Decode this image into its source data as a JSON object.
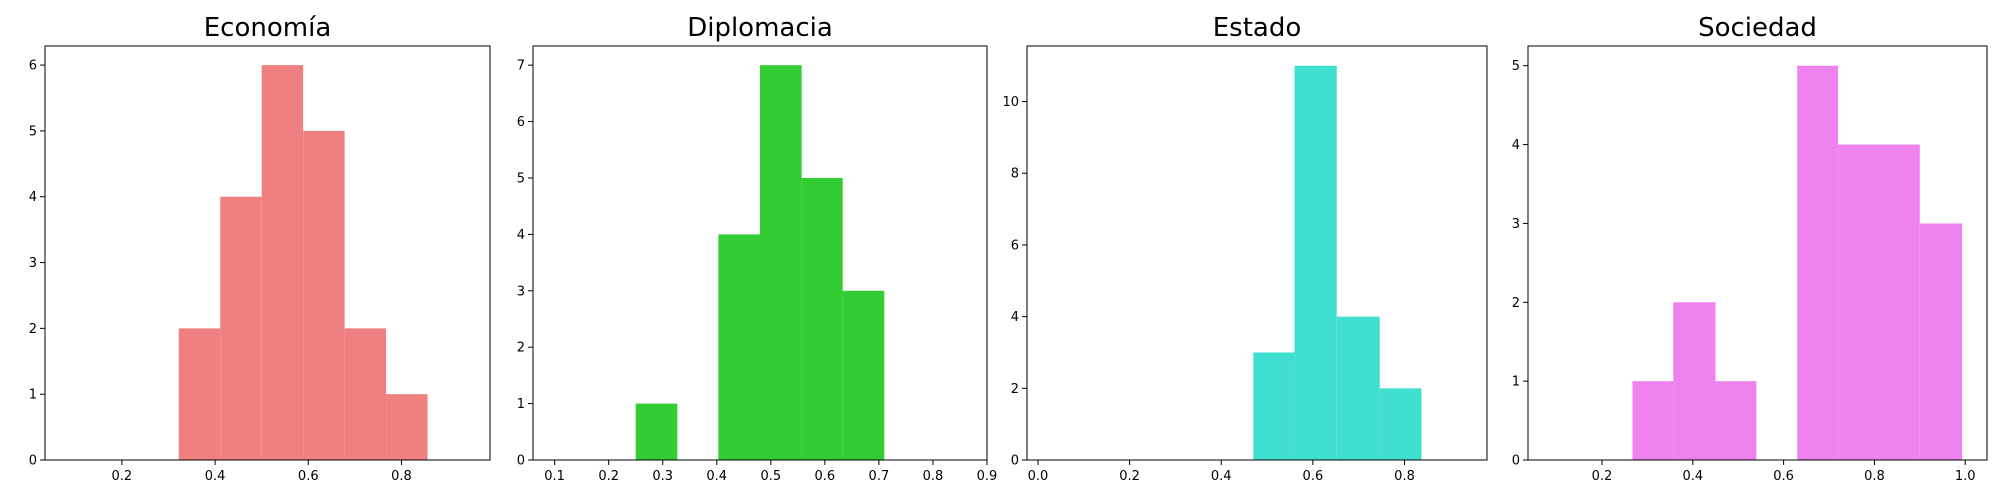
{
  "chart_data": [
    {
      "type": "histogram",
      "title": "Economía",
      "color": "#f08080",
      "bins": [
        0.322,
        0.411,
        0.5,
        0.589,
        0.678,
        0.767,
        0.856
      ],
      "values": [
        2,
        4,
        6,
        5,
        2,
        1
      ],
      "xlim": [
        0.035,
        0.99
      ],
      "ylim": [
        0,
        6.29
      ],
      "xticks": [
        0.2,
        0.4,
        0.6,
        0.8
      ],
      "yticks": [
        0,
        1,
        2,
        3,
        4,
        5,
        6
      ]
    },
    {
      "type": "histogram",
      "title": "Diplomacia",
      "color": "#32cd32",
      "bins": [
        0.25,
        0.327,
        0.403,
        0.48,
        0.557,
        0.633,
        0.71
      ],
      "values": [
        1,
        0,
        4,
        7,
        5,
        3
      ],
      "xlim": [
        0.06,
        0.9
      ],
      "ylim": [
        0,
        7.34
      ],
      "xticks": [
        0.1,
        0.2,
        0.3,
        0.4,
        0.5,
        0.6,
        0.7,
        0.8,
        0.9
      ],
      "yticks": [
        0,
        1,
        2,
        3,
        4,
        5,
        6,
        7
      ]
    },
    {
      "type": "histogram",
      "title": "Estado",
      "color": "#40e0d0",
      "bins": [
        0.47,
        0.56,
        0.652,
        0.746,
        0.837
      ],
      "values": [
        3,
        11,
        4,
        2
      ],
      "xlim": [
        -0.024,
        0.98
      ],
      "ylim": [
        0,
        11.55
      ],
      "xticks": [
        {
          "value": 0,
          "label": "0.0"
        },
        0.2,
        0.4,
        0.6,
        0.8
      ],
      "yticks": [
        0,
        2,
        4,
        6,
        8,
        10
      ]
    },
    {
      "type": "histogram",
      "title": "Sociedad",
      "color": "#ee82ee",
      "bins": [
        0.267,
        0.357,
        0.45,
        0.54,
        0.63,
        0.72,
        0.81,
        0.9,
        0.993
      ],
      "values": [
        1,
        2,
        1,
        0,
        5,
        4,
        4,
        3
      ],
      "xlim": [
        0.037,
        1.048
      ],
      "ylim": [
        0,
        5.25
      ],
      "xticks": [
        0.2,
        0.4,
        0.6,
        0.8,
        {
          "value": 1,
          "label": "1.0"
        }
      ],
      "yticks": [
        0,
        1,
        2,
        3,
        4,
        5
      ]
    }
  ]
}
